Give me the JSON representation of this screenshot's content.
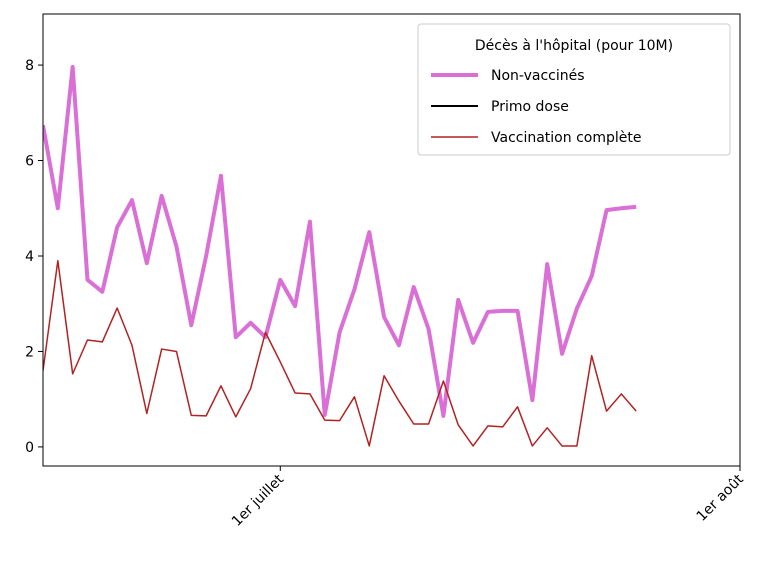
{
  "chart_data": {
    "type": "line",
    "legend_title": "Décès à l'hôpital (pour 10M)",
    "legend": "upper right",
    "x": [
      "06-15",
      "06-16",
      "06-17",
      "06-18",
      "06-19",
      "06-20",
      "06-21",
      "06-22",
      "06-23",
      "06-24",
      "06-25",
      "06-26",
      "06-27",
      "06-28",
      "06-29",
      "06-30",
      "07-01",
      "07-02",
      "07-03",
      "07-04",
      "07-05",
      "07-06",
      "07-07",
      "07-08",
      "07-09",
      "07-10",
      "07-11",
      "07-12",
      "07-13",
      "07-14",
      "07-15",
      "07-16",
      "07-17",
      "07-18",
      "07-19",
      "07-20",
      "07-21",
      "07-22",
      "07-23",
      "07-24",
      "07-25"
    ],
    "xlim": [
      "06-15",
      "08-01"
    ],
    "xticks": [
      {
        "value": "07-01",
        "label": "1er juillet"
      },
      {
        "value": "08-01",
        "label": "1er août"
      }
    ],
    "ylim": [
      -0.4,
      9.07
    ],
    "yticks": [
      0,
      2,
      4,
      6,
      8
    ],
    "series": [
      {
        "name": "Non-vaccinés",
        "color": "#da70d6",
        "width": 4,
        "values": [
          6.74,
          5.0,
          7.96,
          3.5,
          3.25,
          4.6,
          5.17,
          3.85,
          5.26,
          4.2,
          2.55,
          4.0,
          5.68,
          2.3,
          2.6,
          2.3,
          3.5,
          2.95,
          4.72,
          0.67,
          2.4,
          3.3,
          4.5,
          2.72,
          2.13,
          3.35,
          2.47,
          0.65,
          3.08,
          2.18,
          2.83,
          2.85,
          2.85,
          0.98,
          3.83,
          1.95,
          2.9,
          3.58,
          4.96,
          5.0,
          5.03
        ]
      },
      {
        "name": "Primo dose",
        "color": "#000000",
        "width": 2,
        "values": [
          null,
          null,
          null,
          null,
          null,
          null,
          null,
          null,
          null,
          null,
          null,
          null,
          null,
          null,
          null,
          null,
          null,
          null,
          null,
          null,
          null,
          null,
          null,
          null,
          null,
          null,
          null,
          null,
          null,
          null,
          null,
          null,
          null,
          null,
          null,
          null,
          null,
          null,
          null,
          null,
          null
        ]
      },
      {
        "name": "Vaccination complète",
        "color": "#b22222",
        "width": 1.5,
        "values": [
          1.6,
          3.9,
          1.53,
          2.24,
          2.2,
          2.91,
          2.13,
          0.7,
          2.05,
          2.0,
          0.66,
          0.65,
          1.28,
          0.63,
          1.22,
          2.4,
          1.78,
          1.13,
          1.11,
          0.56,
          0.55,
          1.05,
          0.02,
          1.49,
          0.96,
          0.48,
          0.48,
          1.38,
          0.46,
          0.02,
          0.44,
          0.42,
          0.84,
          0.02,
          0.4,
          0.02,
          0.02,
          1.91,
          0.75,
          1.11,
          0.75
        ]
      }
    ]
  }
}
